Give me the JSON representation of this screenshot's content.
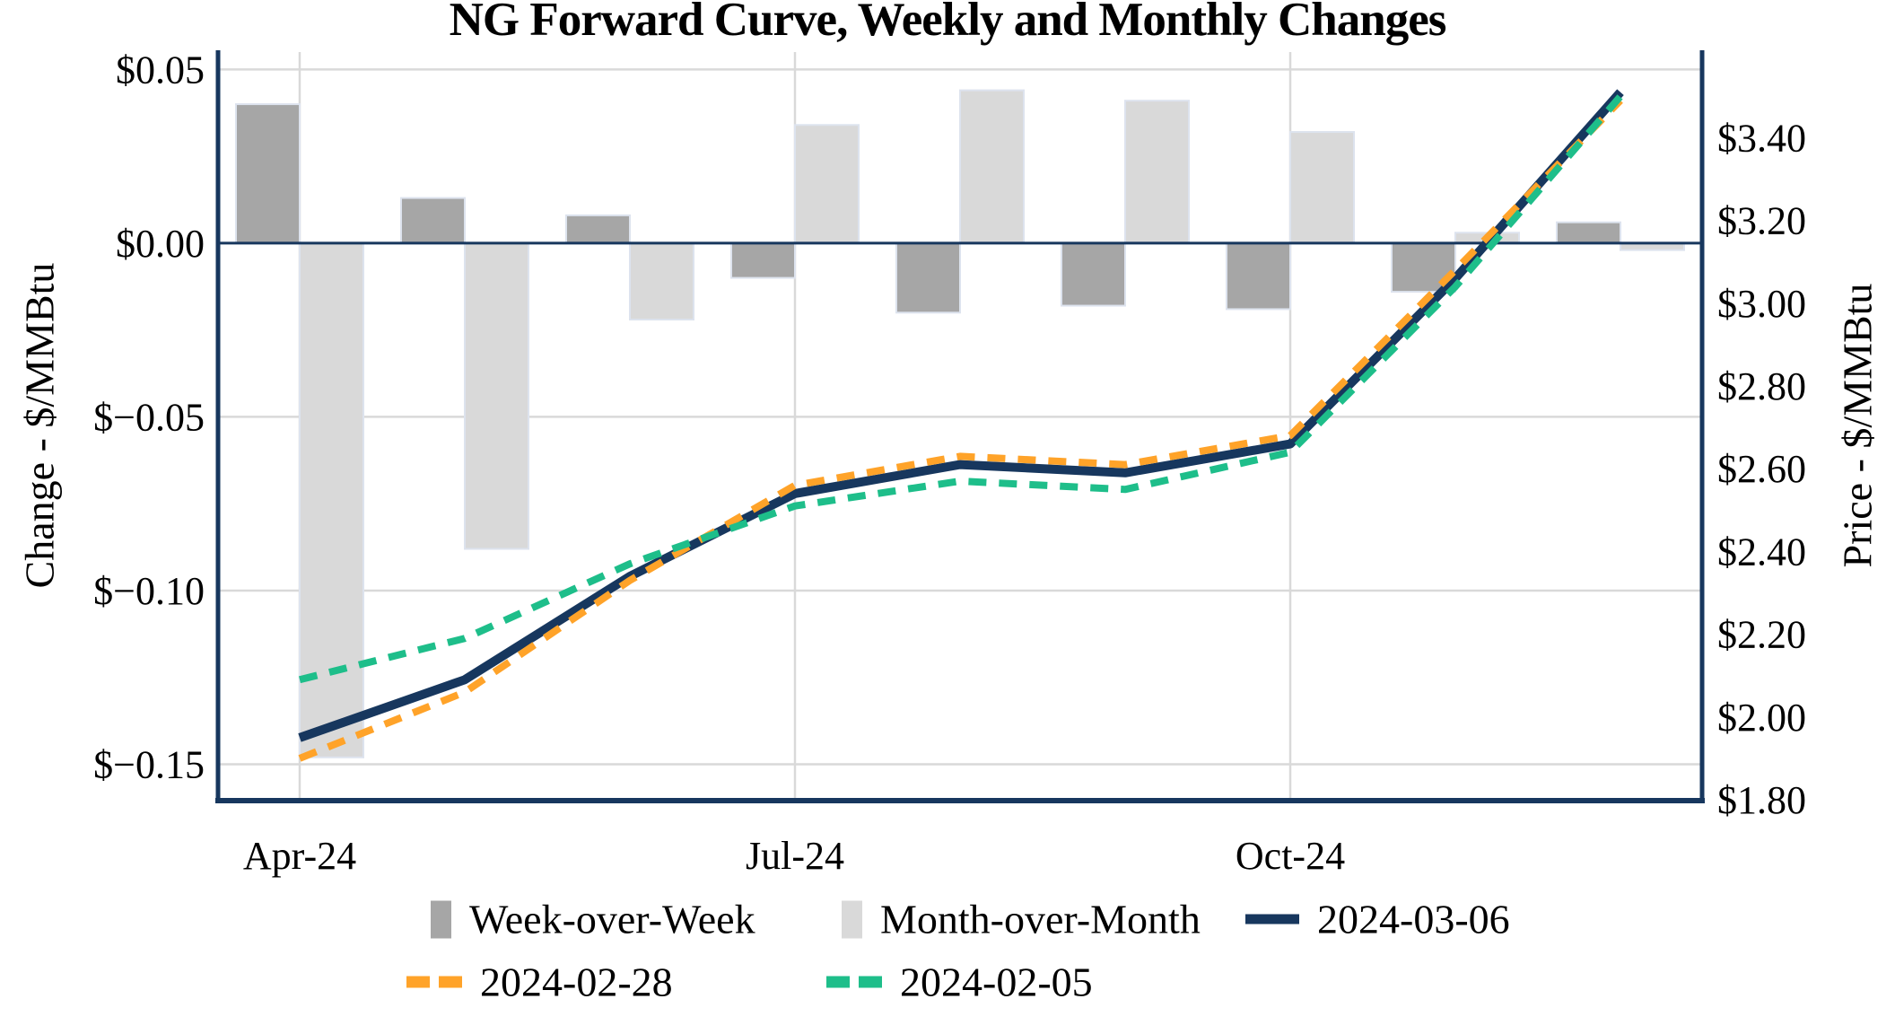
{
  "title": "NG Forward Curve, Weekly and Monthly Changes",
  "axes": {
    "left": {
      "title": "Change - $/MMBtu",
      "ticks": [
        {
          "value": 0.05,
          "label": "$0.05"
        },
        {
          "value": 0.0,
          "label": "$0.00"
        },
        {
          "value": -0.05,
          "label": "$−0.05"
        },
        {
          "value": -0.1,
          "label": "$−0.10"
        },
        {
          "value": -0.15,
          "label": "$−0.15"
        }
      ]
    },
    "right": {
      "title": "Price - $/MMBtu",
      "ticks": [
        {
          "value": 3.4,
          "label": "$3.40"
        },
        {
          "value": 3.2,
          "label": "$3.20"
        },
        {
          "value": 3.0,
          "label": "$3.00"
        },
        {
          "value": 2.8,
          "label": "$2.80"
        },
        {
          "value": 2.6,
          "label": "$2.60"
        },
        {
          "value": 2.4,
          "label": "$2.40"
        },
        {
          "value": 2.2,
          "label": "$2.20"
        },
        {
          "value": 2.0,
          "label": "$2.00"
        },
        {
          "value": 1.8,
          "label": "$1.80"
        }
      ]
    },
    "x": {
      "ticks": [
        {
          "index": 0,
          "label": "Apr-24"
        },
        {
          "index": 3,
          "label": "Jul-24"
        },
        {
          "index": 6,
          "label": "Oct-24"
        }
      ]
    }
  },
  "chart_data": {
    "type": "combo: grouped bar + line",
    "categories": [
      "Apr-24",
      "May-24",
      "Jun-24",
      "Jul-24",
      "Aug-24",
      "Sep-24",
      "Oct-24",
      "Nov-24",
      "Dec-24"
    ],
    "bar_series": [
      {
        "name": "Week-over-Week",
        "axis": "left",
        "color": "#A6A6A6",
        "values": [
          0.04,
          0.013,
          0.008,
          -0.01,
          -0.02,
          -0.018,
          -0.019,
          -0.014,
          0.006
        ]
      },
      {
        "name": "Month-over-Month",
        "axis": "left",
        "color": "#D9D9D9",
        "values": [
          -0.148,
          -0.088,
          -0.022,
          0.034,
          0.044,
          0.041,
          0.032,
          0.003,
          -0.002
        ]
      }
    ],
    "line_series": [
      {
        "name": "2024-03-06",
        "axis": "right",
        "color": "#17375E",
        "dash": "solid",
        "values": [
          1.95,
          2.09,
          2.34,
          2.54,
          2.61,
          2.59,
          2.66,
          3.06,
          3.51
        ]
      },
      {
        "name": "2024-02-28",
        "axis": "right",
        "color": "#FFA329",
        "dash": "dashed",
        "values": [
          1.9,
          2.06,
          2.33,
          2.56,
          2.63,
          2.61,
          2.68,
          3.08,
          3.49
        ]
      },
      {
        "name": "2024-02-05",
        "axis": "right",
        "color": "#1EBE8A",
        "dash": "dashed",
        "values": [
          2.09,
          2.19,
          2.37,
          2.51,
          2.57,
          2.55,
          2.64,
          3.04,
          3.5
        ]
      }
    ],
    "left_axis_range": [
      -0.1602,
      0.055
    ],
    "right_axis_range": [
      1.8,
      3.607
    ],
    "gridlines": {
      "horizontal_at_left_values": [
        0.05,
        -0.05,
        -0.1,
        -0.15
      ],
      "vertical_at_month_indices": [
        0,
        3,
        6
      ],
      "zero_line_at_left_value": 0
    },
    "legend_position": "bottom"
  },
  "colors": {
    "axis": "#17375E",
    "zero_line": "#17375E",
    "grid": "#D9D9D9",
    "bar_stroke": "#DDE3EE",
    "background": "#FFFFFF",
    "text": "#000000"
  }
}
